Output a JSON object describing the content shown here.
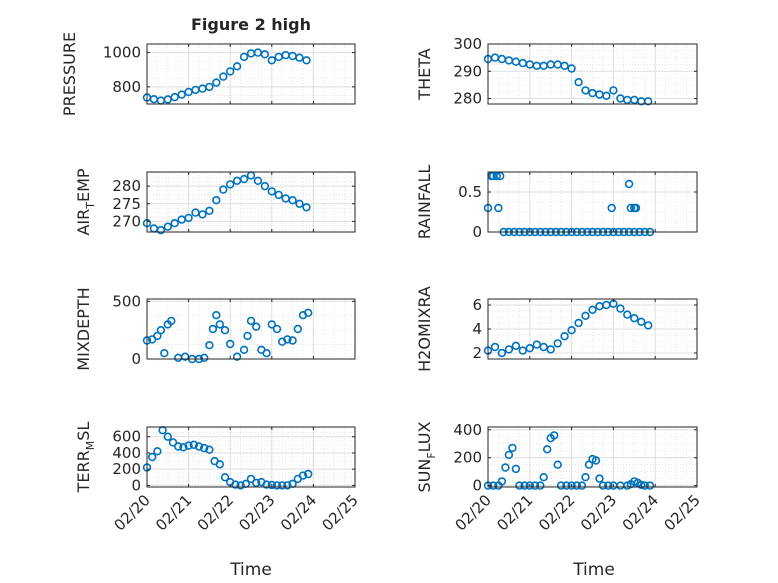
{
  "figure_title": "Figure 2 high",
  "colors": {
    "series": "#0072BD",
    "grid": "#dfdfdf",
    "axes": "#262626"
  },
  "chart_data": [
    {
      "type": "scatter",
      "id": "pressure",
      "ylabel": "PRESSURE",
      "yticks": [
        "800",
        "1000"
      ],
      "ytick_values": [
        800,
        1000
      ],
      "ylim": [
        700,
        1050
      ],
      "x_dates": true,
      "grid": true,
      "x": [
        "02/20 00:00",
        "02/20 04:00",
        "02/20 08:00",
        "02/20 12:00",
        "02/20 16:00",
        "02/20 20:00",
        "02/21 00:00",
        "02/21 04:00",
        "02/21 08:00",
        "02/21 12:00",
        "02/21 16:00",
        "02/21 20:00",
        "02/22 00:00",
        "02/22 04:00",
        "02/22 08:00",
        "02/22 12:00",
        "02/22 16:00",
        "02/22 20:00",
        "02/23 00:00",
        "02/23 04:00",
        "02/23 08:00",
        "02/23 12:00",
        "02/23 16:00",
        "02/23 20:00"
      ],
      "values": [
        738,
        728,
        720,
        726,
        740,
        755,
        770,
        782,
        790,
        800,
        825,
        860,
        890,
        920,
        975,
        995,
        1000,
        990,
        955,
        975,
        985,
        980,
        970,
        955
      ]
    },
    {
      "type": "scatter",
      "id": "theta",
      "ylabel": "THETA",
      "yticks": [
        "280",
        "290",
        "300"
      ],
      "ytick_values": [
        280,
        290,
        300
      ],
      "ylim": [
        278,
        300
      ],
      "x_dates": true,
      "grid": true,
      "x": [
        "02/20 00:00",
        "02/20 04:00",
        "02/20 08:00",
        "02/20 12:00",
        "02/20 16:00",
        "02/20 20:00",
        "02/21 00:00",
        "02/21 04:00",
        "02/21 08:00",
        "02/21 12:00",
        "02/21 16:00",
        "02/21 20:00",
        "02/22 00:00",
        "02/22 04:00",
        "02/22 08:00",
        "02/22 12:00",
        "02/22 16:00",
        "02/22 20:00",
        "02/23 00:00",
        "02/23 04:00",
        "02/23 08:00",
        "02/23 12:00",
        "02/23 16:00",
        "02/23 20:00"
      ],
      "values": [
        294.5,
        295,
        294.5,
        294,
        293.5,
        293,
        292.5,
        292,
        292,
        292.5,
        292.5,
        292,
        291,
        286,
        283,
        282,
        281.5,
        281,
        283,
        280,
        279.5,
        279.5,
        279,
        279
      ]
    },
    {
      "type": "scatter",
      "id": "air_temp",
      "ylabel": "AIR_TEMP",
      "ylabel_display": "AIR_TEMP",
      "yticks": [
        "270",
        "275",
        "280"
      ],
      "ytick_values": [
        270,
        275,
        280
      ],
      "ylim": [
        267,
        284
      ],
      "x_dates": true,
      "grid": true,
      "x": [
        "02/20 00:00",
        "02/20 04:00",
        "02/20 08:00",
        "02/20 12:00",
        "02/20 16:00",
        "02/20 20:00",
        "02/21 00:00",
        "02/21 04:00",
        "02/21 08:00",
        "02/21 12:00",
        "02/21 16:00",
        "02/21 20:00",
        "02/22 00:00",
        "02/22 04:00",
        "02/22 08:00",
        "02/22 12:00",
        "02/22 16:00",
        "02/22 20:00",
        "02/23 00:00",
        "02/23 04:00",
        "02/23 08:00",
        "02/23 12:00",
        "02/23 16:00",
        "02/23 20:00"
      ],
      "values": [
        269.5,
        268,
        267.5,
        268.5,
        269.5,
        270.5,
        271,
        272.5,
        272,
        273,
        276,
        279,
        280.5,
        281.5,
        282,
        283,
        281.5,
        280,
        278.5,
        277.5,
        276.5,
        276,
        275,
        274
      ]
    },
    {
      "type": "scatter",
      "id": "rainfall",
      "ylabel": "RAINFALL",
      "yticks": [
        "0",
        "0.5"
      ],
      "ytick_values": [
        0,
        0.5
      ],
      "ylim": [
        0,
        0.75
      ],
      "x_dates": true,
      "grid": true,
      "x": [
        "02/20 00:00",
        "02/20 03:00",
        "02/20 06:00",
        "02/20 09:00",
        "02/20 12:00",
        "02/20 15:00",
        "02/20 18:00",
        "02/20 21:00",
        "02/21 00:00",
        "02/21 03:00",
        "02/21 06:00",
        "02/21 09:00",
        "02/21 12:00",
        "02/21 15:00",
        "02/21 18:00",
        "02/21 21:00",
        "02/22 00:00",
        "02/22 03:00",
        "02/22 06:00",
        "02/22 09:00",
        "02/22 12:00",
        "02/22 15:00",
        "02/22 18:00",
        "02/22 21:00",
        "02/23 00:00",
        "02/23 03:00",
        "02/23 06:00",
        "02/23 09:00",
        "02/23 12:00",
        "02/23 15:00",
        "02/23 18:00",
        "02/23 21:00",
        "02/20 02:00",
        "02/20 05:00",
        "02/20 07:00",
        "02/22 23:00",
        "02/23 09:00",
        "02/23 10:00",
        "02/23 12:00",
        "02/23 13:00"
      ],
      "values": [
        0.3,
        0.7,
        0.3,
        0,
        0,
        0,
        0,
        0,
        0,
        0,
        0,
        0,
        0,
        0,
        0,
        0,
        0,
        0,
        0,
        0,
        0,
        0,
        0,
        0,
        0,
        0,
        0,
        0,
        0,
        0,
        0,
        0,
        0.7,
        0.7,
        0.7,
        0.3,
        0.6,
        0.3,
        0.3,
        0.3
      ]
    },
    {
      "type": "scatter",
      "id": "mixdepth",
      "ylabel": "MIXDEPTH",
      "yticks": [
        "0",
        "500"
      ],
      "ytick_values": [
        0,
        500
      ],
      "ylim": [
        0,
        520
      ],
      "x_dates": true,
      "grid": true,
      "x": [
        "02/20 00:00",
        "02/20 03:00",
        "02/20 06:00",
        "02/20 08:00",
        "02/20 10:00",
        "02/20 12:00",
        "02/20 14:00",
        "02/20 18:00",
        "02/20 22:00",
        "02/21 02:00",
        "02/21 06:00",
        "02/21 09:00",
        "02/21 12:00",
        "02/21 14:00",
        "02/21 16:00",
        "02/21 18:00",
        "02/21 21:00",
        "02/22 00:00",
        "02/22 04:00",
        "02/22 08:00",
        "02/22 10:00",
        "02/22 12:00",
        "02/22 15:00",
        "02/22 18:00",
        "02/22 21:00",
        "02/23 00:00",
        "02/23 03:00",
        "02/23 06:00",
        "02/23 09:00",
        "02/23 12:00",
        "02/23 15:00",
        "02/23 18:00",
        "02/23 21:00"
      ],
      "values": [
        160,
        170,
        200,
        250,
        50,
        300,
        330,
        10,
        20,
        0,
        0,
        10,
        120,
        260,
        380,
        300,
        250,
        130,
        20,
        80,
        200,
        330,
        280,
        80,
        50,
        300,
        260,
        150,
        170,
        160,
        260,
        380,
        400
      ]
    },
    {
      "type": "scatter",
      "id": "h2omixra",
      "ylabel": "H2OMIXRA",
      "yticks": [
        "2",
        "4",
        "6"
      ],
      "ytick_values": [
        2,
        4,
        6
      ],
      "ylim": [
        1.5,
        6.5
      ],
      "x_dates": true,
      "grid": true,
      "x": [
        "02/20 00:00",
        "02/20 04:00",
        "02/20 08:00",
        "02/20 12:00",
        "02/20 16:00",
        "02/20 20:00",
        "02/21 00:00",
        "02/21 04:00",
        "02/21 08:00",
        "02/21 12:00",
        "02/21 16:00",
        "02/21 20:00",
        "02/22 00:00",
        "02/22 04:00",
        "02/22 08:00",
        "02/22 12:00",
        "02/22 16:00",
        "02/22 20:00",
        "02/23 00:00",
        "02/23 04:00",
        "02/23 08:00",
        "02/23 12:00",
        "02/23 16:00",
        "02/23 20:00"
      ],
      "values": [
        2.2,
        2.5,
        2.0,
        2.3,
        2.6,
        2.2,
        2.4,
        2.7,
        2.5,
        2.3,
        2.8,
        3.4,
        3.9,
        4.5,
        5.1,
        5.6,
        5.9,
        6.0,
        6.1,
        5.7,
        5.2,
        4.9,
        4.6,
        4.3
      ]
    },
    {
      "type": "scatter",
      "id": "terr_msl",
      "ylabel": "TERR_MSL",
      "ylabel_display": "TERR_MSL",
      "yticks": [
        "0",
        "200",
        "400",
        "600"
      ],
      "ytick_values": [
        0,
        200,
        400,
        600
      ],
      "ylim": [
        -20,
        720
      ],
      "x_dates": true,
      "grid": true,
      "x": [
        "02/20 00:00",
        "02/20 03:00",
        "02/20 06:00",
        "02/20 09:00",
        "02/20 12:00",
        "02/20 15:00",
        "02/20 18:00",
        "02/20 21:00",
        "02/21 00:00",
        "02/21 03:00",
        "02/21 06:00",
        "02/21 09:00",
        "02/21 12:00",
        "02/21 15:00",
        "02/21 18:00",
        "02/21 21:00",
        "02/22 00:00",
        "02/22 03:00",
        "02/22 06:00",
        "02/22 09:00",
        "02/22 12:00",
        "02/22 15:00",
        "02/22 18:00",
        "02/22 21:00",
        "02/23 00:00",
        "02/23 03:00",
        "02/23 06:00",
        "02/23 09:00",
        "02/23 12:00",
        "02/23 15:00",
        "02/23 18:00",
        "02/23 21:00"
      ],
      "values": [
        220,
        350,
        420,
        680,
        600,
        530,
        480,
        470,
        490,
        500,
        480,
        460,
        440,
        300,
        260,
        100,
        40,
        10,
        0,
        20,
        80,
        30,
        40,
        10,
        5,
        0,
        0,
        0,
        20,
        80,
        120,
        140
      ]
    },
    {
      "type": "scatter",
      "id": "sun_flux",
      "ylabel": "SUN_FLUX",
      "ylabel_display": "SUN_FLUX",
      "yticks": [
        "0",
        "200",
        "400"
      ],
      "ytick_values": [
        0,
        200,
        400
      ],
      "ylim": [
        -10,
        420
      ],
      "x_dates": true,
      "grid": true,
      "x": [
        "02/20 00:00",
        "02/20 03:00",
        "02/20 06:00",
        "02/20 08:00",
        "02/20 10:00",
        "02/20 12:00",
        "02/20 14:00",
        "02/20 16:00",
        "02/20 18:00",
        "02/20 21:00",
        "02/21 00:00",
        "02/21 03:00",
        "02/21 06:00",
        "02/21 08:00",
        "02/21 10:00",
        "02/21 12:00",
        "02/21 14:00",
        "02/21 16:00",
        "02/21 18:00",
        "02/21 21:00",
        "02/22 00:00",
        "02/22 03:00",
        "02/22 06:00",
        "02/22 08:00",
        "02/22 10:00",
        "02/22 12:00",
        "02/22 14:00",
        "02/22 16:00",
        "02/22 18:00",
        "02/22 21:00",
        "02/23 00:00",
        "02/23 04:00",
        "02/23 08:00",
        "02/23 10:00",
        "02/23 12:00",
        "02/23 14:00",
        "02/23 16:00",
        "02/23 18:00",
        "02/23 21:00"
      ],
      "values": [
        0,
        0,
        0,
        30,
        130,
        220,
        270,
        120,
        0,
        0,
        0,
        0,
        0,
        60,
        260,
        340,
        360,
        150,
        0,
        0,
        0,
        0,
        0,
        60,
        150,
        190,
        180,
        50,
        0,
        0,
        0,
        0,
        0,
        10,
        30,
        20,
        5,
        0,
        0
      ]
    }
  ],
  "x_tick_labels": [
    "02/20",
    "02/21",
    "02/22",
    "02/23",
    "02/24",
    "02/25"
  ],
  "xlabel_left": "Time",
  "xlabel_right": "Time"
}
